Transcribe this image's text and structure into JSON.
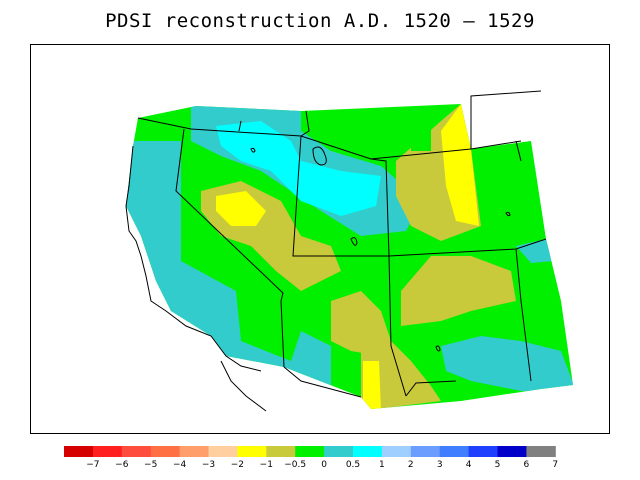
{
  "title": "PDSI reconstruction A.D. 1520 – 1529",
  "legend": {
    "colors": [
      "#d50000",
      "#ff1f1f",
      "#ff4d3d",
      "#ff7045",
      "#ff9d6b",
      "#ffcf9f",
      "#ffff00",
      "#c9c93c",
      "#00f000",
      "#33cccc",
      "#00ffff",
      "#9fcfff",
      "#6b9dff",
      "#3f7fff",
      "#1f3fff",
      "#0000c8",
      "#808080"
    ],
    "labels": [
      "−7",
      "−6",
      "−5",
      "−4",
      "−3",
      "−2",
      "−1",
      "−0.5",
      "0",
      "0.5",
      "1",
      "2",
      "3",
      "4",
      "5",
      "6",
      "7"
    ]
  },
  "map": {
    "water_color": "#ffffff",
    "outline_color": "#000000"
  }
}
